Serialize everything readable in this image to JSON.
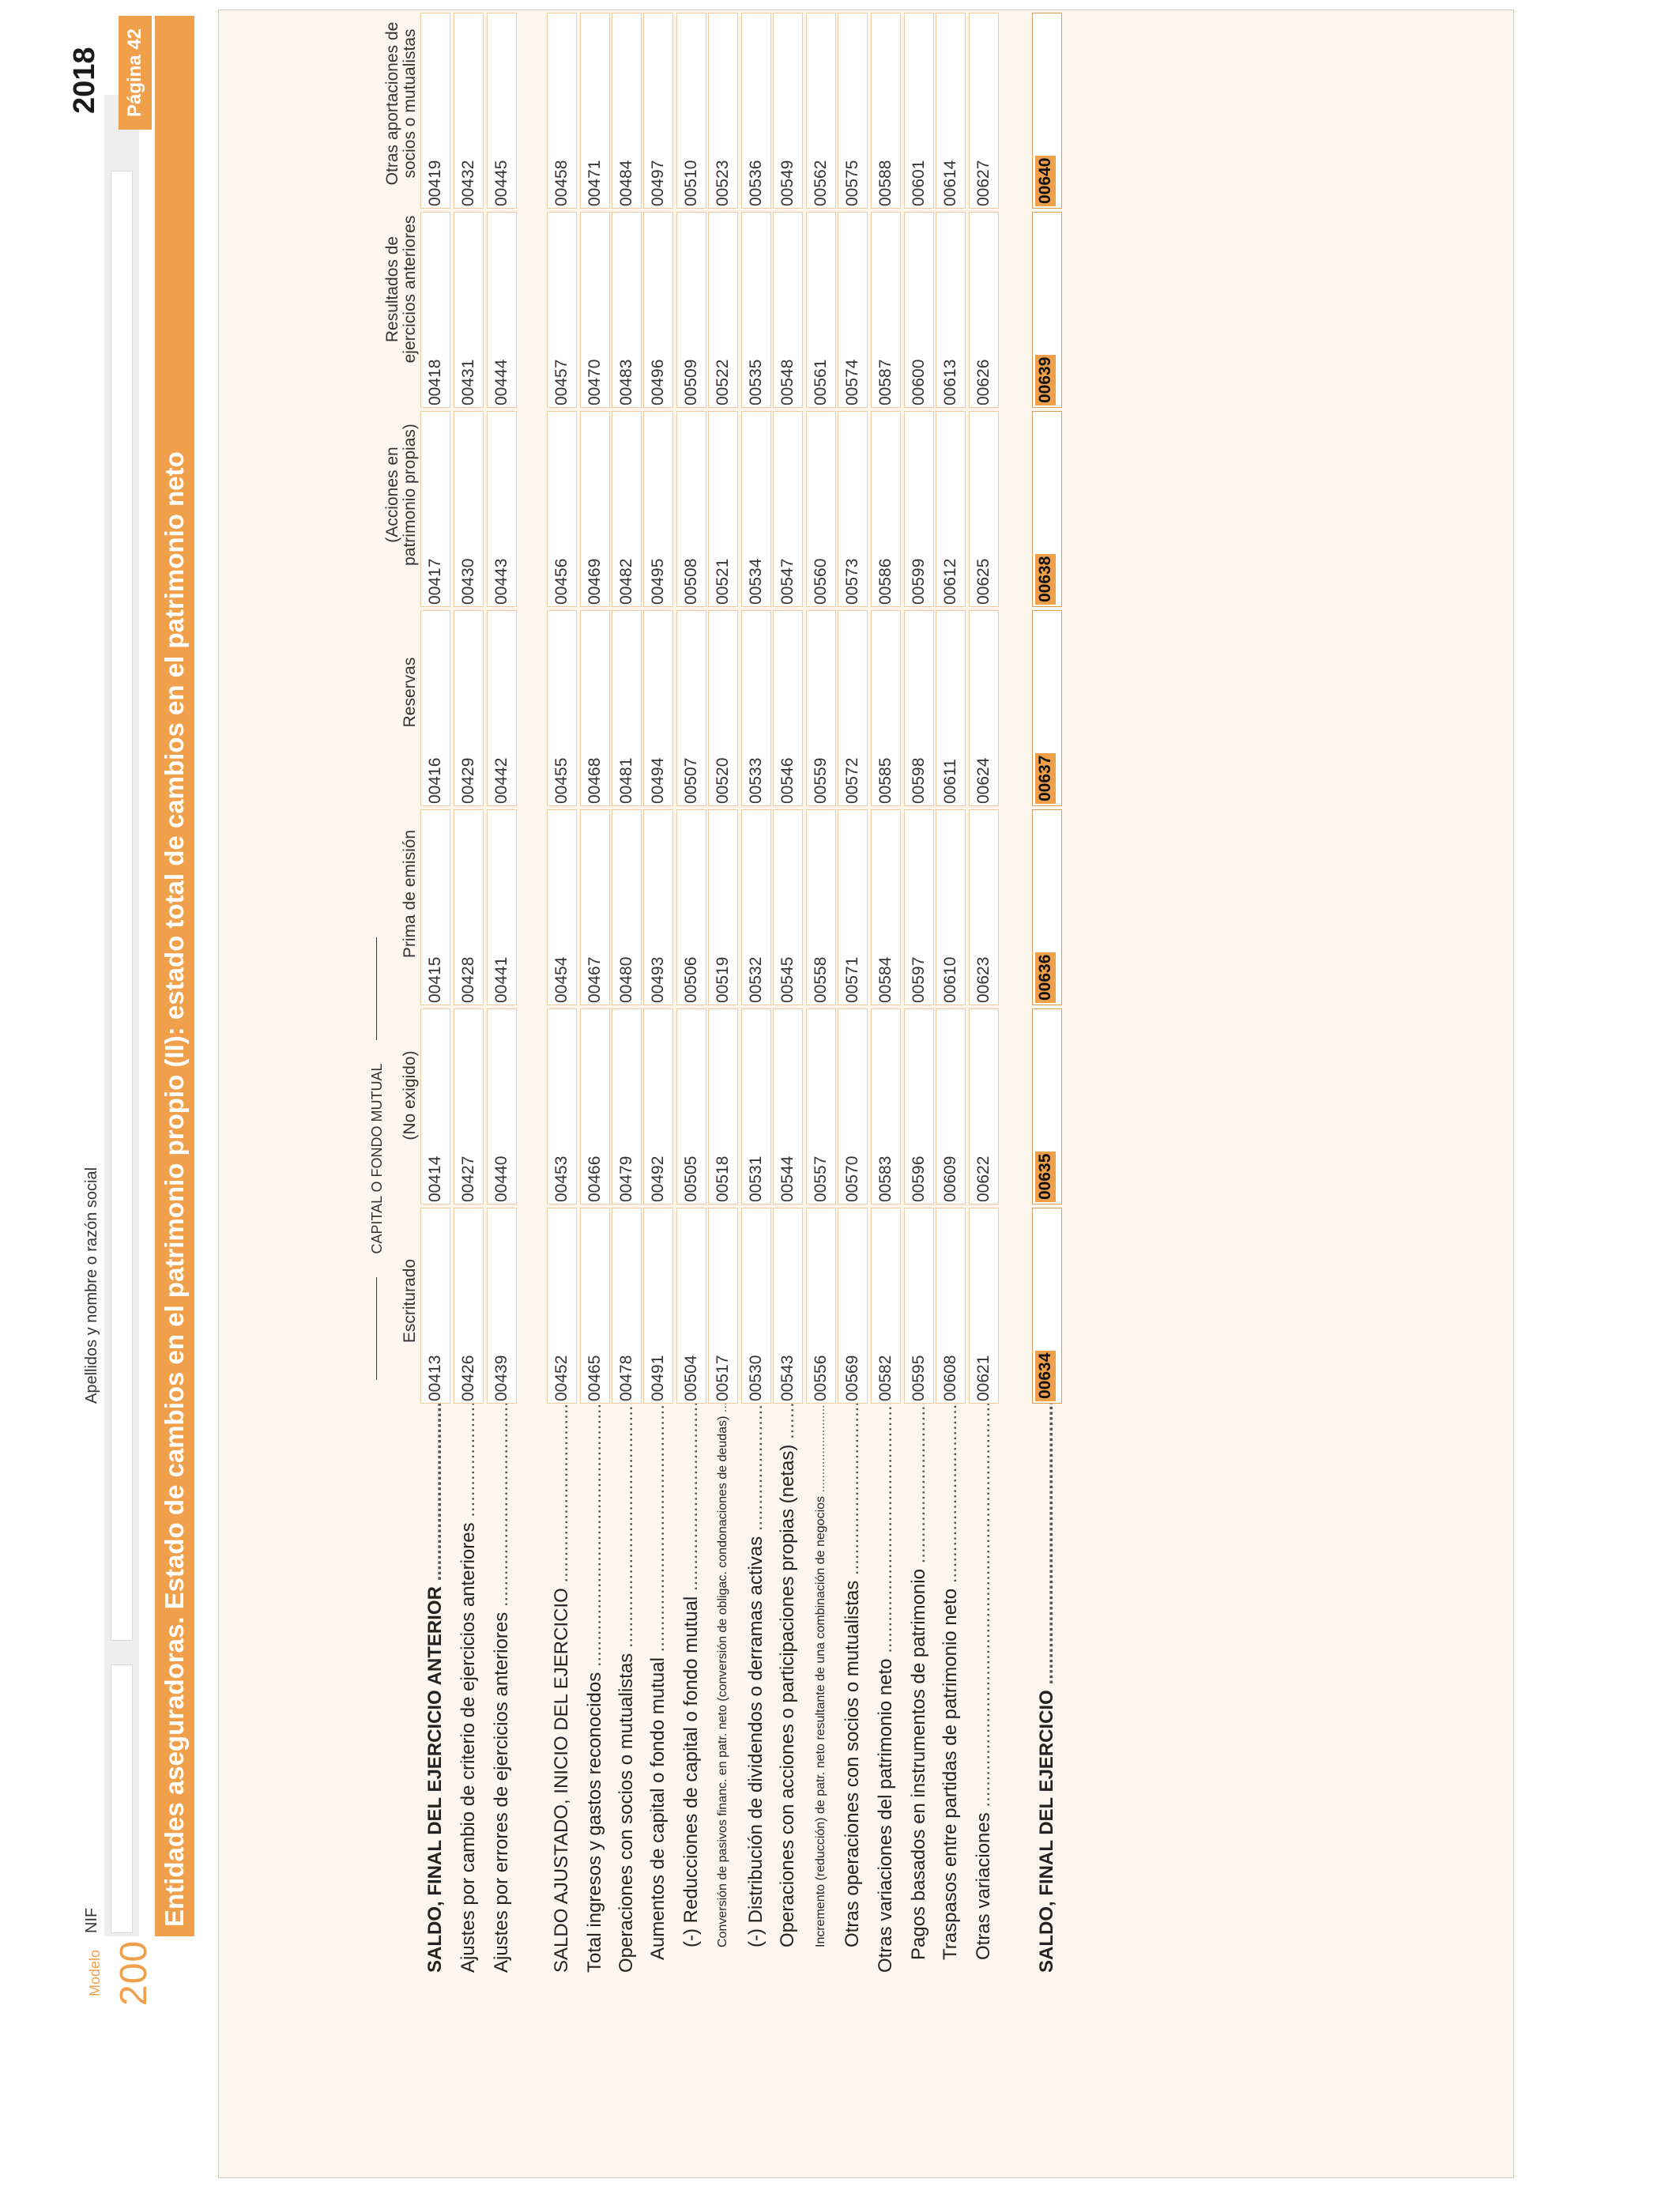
{
  "header": {
    "modelo_label": "Modelo",
    "modelo_number": "200",
    "nif_label": "NIF",
    "name_label": "Apellidos y nombre o razón social",
    "year": "2018",
    "page": "Página 42",
    "title": "Entidades aseguradoras. Estado de cambios en el patrimonio propio (II): estado total de cambios en el patrimonio neto"
  },
  "columns": {
    "group": "CAPITAL O FONDO MUTUAL",
    "c1": "Escriturado",
    "c2": "(No exigido)",
    "c3": "Prima de emisión",
    "c4": "Reservas",
    "c5a": "(Acciones en",
    "c5b": "patrimonio propias)",
    "c6a": "Resultados de",
    "c6b": "ejercicios anteriores",
    "c7a": "Otras aportaciones de",
    "c7b": "socios o mutualistas"
  },
  "rows": [
    {
      "label": "SALDO, FINAL DEL EJERCICIO ANTERIOR",
      "codes": [
        "00413",
        "00414",
        "00415",
        "00416",
        "00417",
        "00418",
        "00419"
      ]
    },
    {
      "label": "Ajustes por cambio de criterio de ejercicios anteriores",
      "codes": [
        "00426",
        "00427",
        "00428",
        "00429",
        "00430",
        "00431",
        "00432"
      ]
    },
    {
      "label": "Ajustes por errores de ejercicios anteriores",
      "codes": [
        "00439",
        "00440",
        "00441",
        "00442",
        "00443",
        "00444",
        "00445"
      ]
    },
    {
      "label": "SALDO AJUSTADO, INICIO DEL EJERCICIO",
      "codes": [
        "00452",
        "00453",
        "00454",
        "00455",
        "00456",
        "00457",
        "00458"
      ]
    },
    {
      "label": "Total ingresos y gastos reconocidos",
      "codes": [
        "00465",
        "00466",
        "00467",
        "00468",
        "00469",
        "00470",
        "00471"
      ]
    },
    {
      "label": "Operaciones con socios o mutualistas",
      "codes": [
        "00478",
        "00479",
        "00480",
        "00481",
        "00482",
        "00483",
        "00484"
      ]
    },
    {
      "label": "Aumentos de capital o fondo mutual",
      "codes": [
        "00491",
        "00492",
        "00493",
        "00494",
        "00495",
        "00496",
        "00497"
      ]
    },
    {
      "label": "(-) Reducciones de capital o fondo mutual",
      "codes": [
        "00504",
        "00505",
        "00506",
        "00507",
        "00508",
        "00509",
        "00510"
      ]
    },
    {
      "label": "Conversión de pasivos financ. en patr. neto (conversión de obligac. condonaciones de deudas)",
      "codes": [
        "00517",
        "00518",
        "00519",
        "00520",
        "00521",
        "00522",
        "00523"
      ]
    },
    {
      "label": "(-) Distribución de dividendos o derramas activas",
      "codes": [
        "00530",
        "00531",
        "00532",
        "00533",
        "00534",
        "00535",
        "00536"
      ]
    },
    {
      "label": "Operaciones con acciones o participaciones propias (netas)",
      "codes": [
        "00543",
        "00544",
        "00545",
        "00546",
        "00547",
        "00548",
        "00549"
      ]
    },
    {
      "label": "Incremento (reducción) de patr. neto resultante de una combinación de negocios",
      "codes": [
        "00556",
        "00557",
        "00558",
        "00559",
        "00560",
        "00561",
        "00562"
      ]
    },
    {
      "label": "Otras operaciones con socios o mutualistas",
      "codes": [
        "00569",
        "00570",
        "00571",
        "00572",
        "00573",
        "00574",
        "00575"
      ]
    },
    {
      "label": "Otras variaciones del patrimonio neto",
      "codes": [
        "00582",
        "00583",
        "00584",
        "00585",
        "00586",
        "00587",
        "00588"
      ]
    },
    {
      "label": "Pagos basados en instrumentos de patrimonio",
      "codes": [
        "00595",
        "00596",
        "00597",
        "00598",
        "00599",
        "00600",
        "00601"
      ]
    },
    {
      "label": "Traspasos entre partidas de patrimonio neto",
      "codes": [
        "00608",
        "00609",
        "00610",
        "00611",
        "00612",
        "00613",
        "00614"
      ]
    },
    {
      "label": "Otras variaciones",
      "codes": [
        "00621",
        "00622",
        "00623",
        "00624",
        "00625",
        "00626",
        "00627"
      ]
    },
    {
      "label": "SALDO, FINAL DEL EJERCICIO",
      "codes": [
        "00634",
        "00635",
        "00636",
        "00637",
        "00638",
        "00639",
        "00640"
      ]
    }
  ]
}
